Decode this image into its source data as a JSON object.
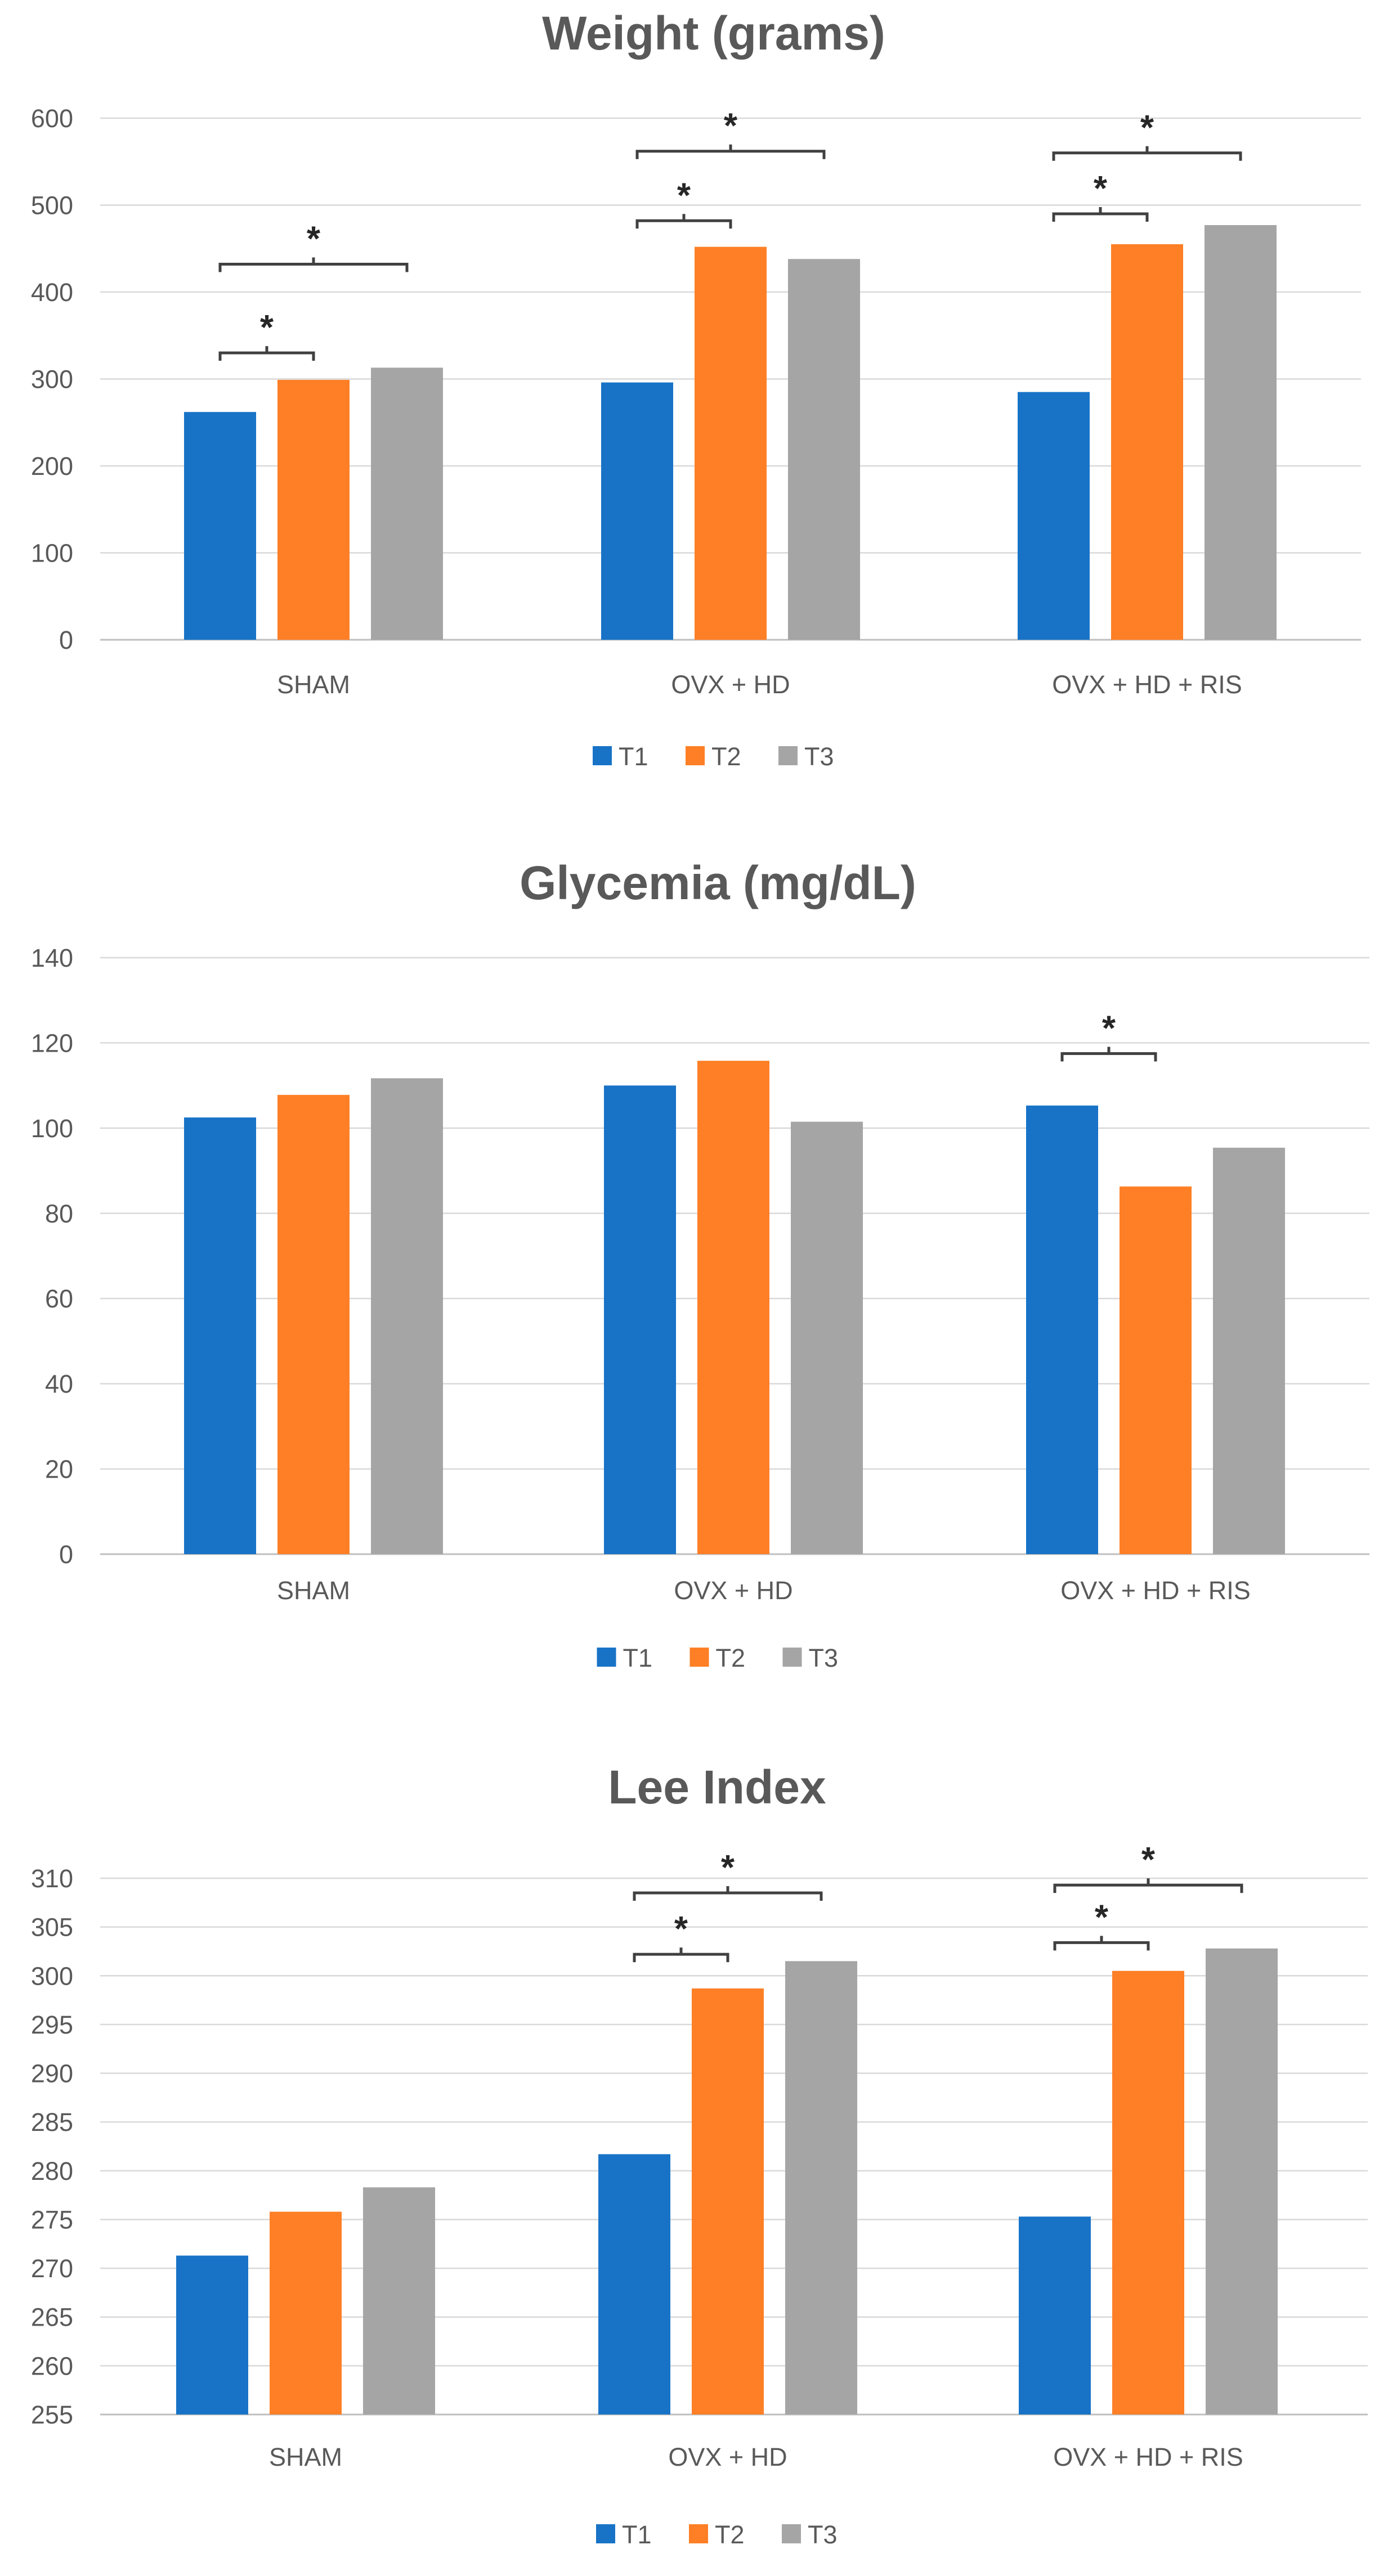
{
  "colors": {
    "T1": "#1873c7",
    "T2": "#fe7f25",
    "T3": "#a5a5a5",
    "grid": "#d9d9d9",
    "text": "#595959"
  },
  "chart_data": [
    {
      "type": "bar",
      "title": "Weight (grams)",
      "categories": [
        "SHAM",
        "OVX + HD",
        "OVX + HD + RIS"
      ],
      "series": [
        {
          "name": "T1",
          "values": [
            262,
            296,
            285
          ]
        },
        {
          "name": "T2",
          "values": [
            299,
            452,
            455
          ]
        },
        {
          "name": "T3",
          "values": [
            313,
            438,
            477
          ]
        }
      ],
      "ylim": [
        0,
        600
      ],
      "yticks": [
        0,
        100,
        200,
        300,
        400,
        500,
        600
      ],
      "legend": "bottom",
      "significance": [
        {
          "category": 0,
          "from": "T1",
          "to": "T2",
          "label": "*",
          "level": 330
        },
        {
          "category": 0,
          "from": "T1",
          "to": "T3",
          "label": "*",
          "level": 432
        },
        {
          "category": 1,
          "from": "T1",
          "to": "T2",
          "label": "*",
          "level": 482
        },
        {
          "category": 1,
          "from": "T1",
          "to": "T3",
          "label": "*",
          "level": 562
        },
        {
          "category": 2,
          "from": "T1",
          "to": "T2",
          "label": "*",
          "level": 490
        },
        {
          "category": 2,
          "from": "T1",
          "to": "T3",
          "label": "*",
          "level": 560
        }
      ]
    },
    {
      "type": "bar",
      "title": "Glycemia (mg/dL)",
      "categories": [
        "SHAM",
        "OVX + HD",
        "OVX + HD + RIS"
      ],
      "series": [
        {
          "name": "T1",
          "values": [
            102.5,
            110,
            105.3
          ]
        },
        {
          "name": "T2",
          "values": [
            107.8,
            115.8,
            86.3
          ]
        },
        {
          "name": "T3",
          "values": [
            111.7,
            101.5,
            95.4
          ]
        }
      ],
      "ylim": [
        0,
        140
      ],
      "yticks": [
        0,
        20,
        40,
        60,
        80,
        100,
        120,
        140
      ],
      "legend": "bottom",
      "significance": [
        {
          "category": 2,
          "from": "T1",
          "to": "T2",
          "label": "*",
          "level": 117.5
        }
      ]
    },
    {
      "type": "bar",
      "title": "Lee Index",
      "categories": [
        "SHAM",
        "OVX + HD",
        "OVX + HD + RIS"
      ],
      "series": [
        {
          "name": "T1",
          "values": [
            271.3,
            281.7,
            275.3
          ]
        },
        {
          "name": "T2",
          "values": [
            275.8,
            298.7,
            300.5
          ]
        },
        {
          "name": "T3",
          "values": [
            278.3,
            301.5,
            302.8
          ]
        }
      ],
      "ylim": [
        255,
        310
      ],
      "yticks": [
        255,
        260,
        265,
        270,
        275,
        280,
        285,
        290,
        295,
        300,
        305,
        310
      ],
      "legend": "bottom",
      "significance": [
        {
          "category": 1,
          "from": "T1",
          "to": "T2",
          "label": "*",
          "level": 302.2
        },
        {
          "category": 1,
          "from": "T1",
          "to": "T3",
          "label": "*",
          "level": 308.5
        },
        {
          "category": 2,
          "from": "T1",
          "to": "T2",
          "label": "*",
          "level": 303.4
        },
        {
          "category": 2,
          "from": "T1",
          "to": "T3",
          "label": "*",
          "level": 309.3
        }
      ]
    }
  ]
}
